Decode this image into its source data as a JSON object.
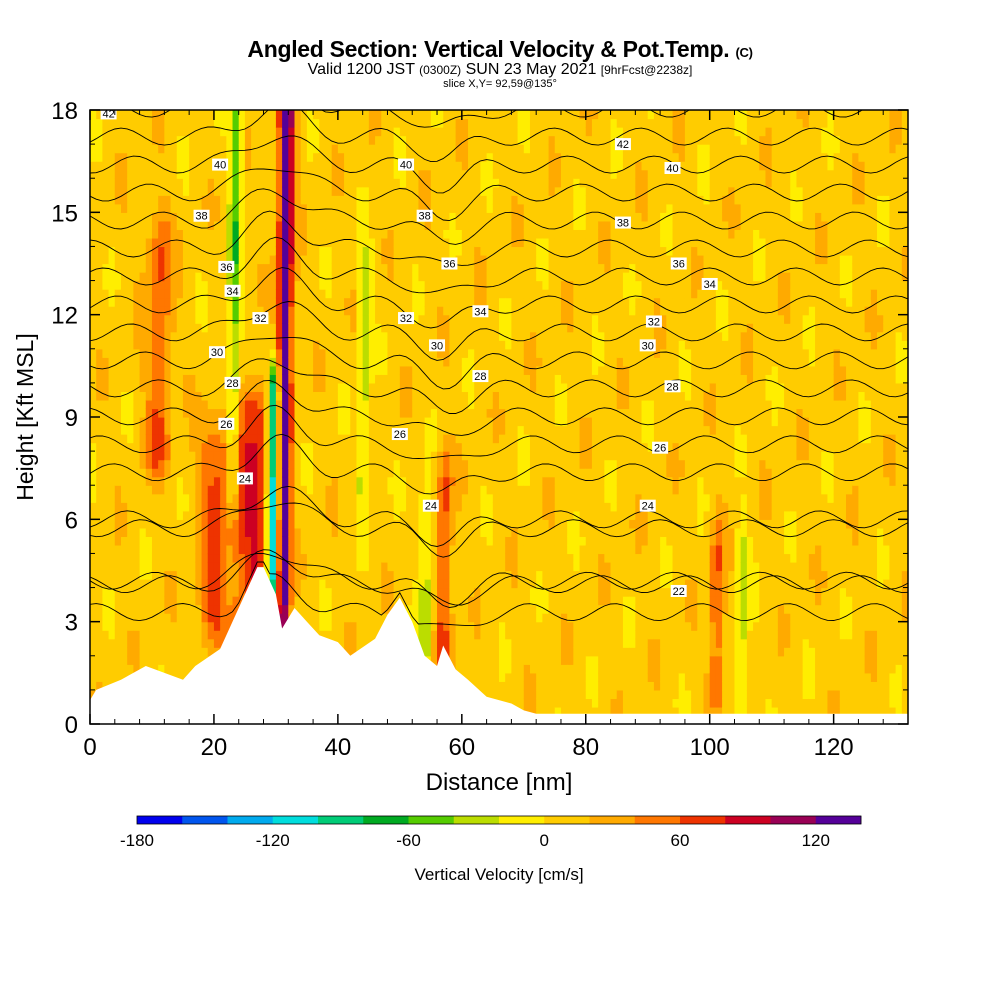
{
  "title": {
    "main": "Angled Section: Vertical Velocity & Pot.Temp.",
    "main_suffix": "(C)",
    "valid_prefix": "Valid 1200 JST",
    "valid_z": "(0300Z)",
    "valid_date": "SUN 23 May 2021",
    "valid_fcst": "[9hrFcst@2238z]",
    "slice": "slice X,Y= 92,59@135°"
  },
  "chart_data": {
    "type": "heatmap",
    "xlabel": "Distance [nm]",
    "ylabel": "Height [Kft MSL]",
    "xlim": [
      0,
      132
    ],
    "ylim": [
      0,
      18
    ],
    "x_ticks": [
      0,
      20,
      40,
      60,
      80,
      100,
      120
    ],
    "y_ticks": [
      0,
      3,
      6,
      9,
      12,
      15,
      18
    ],
    "colorbar": {
      "label": "Vertical Velocity [cm/s]",
      "min": -180,
      "max": 140,
      "step": 20,
      "tick_values": [
        -180,
        -120,
        -60,
        0,
        60,
        120
      ],
      "colors": [
        "#0000ee",
        "#0055ee",
        "#00aaee",
        "#00dddd",
        "#00cc77",
        "#00aa22",
        "#55cc00",
        "#bbdd00",
        "#ffee00",
        "#ffcc00",
        "#ffaa00",
        "#ff7700",
        "#ee3300",
        "#cc0022",
        "#990055",
        "#550099"
      ]
    },
    "field_background_value": 10,
    "velocity_features": [
      {
        "x": 31.0,
        "z_min": 3.0,
        "z_max": 18.0,
        "value": 130,
        "halfwidth": 1.2
      },
      {
        "x": 29.5,
        "z_min": 4.0,
        "z_max": 9.5,
        "value": -150,
        "halfwidth": 1.0
      },
      {
        "x": 26.0,
        "z_min": 3.0,
        "z_max": 9.0,
        "value": 70,
        "halfwidth": 3.0
      },
      {
        "x": 20.0,
        "z_min": 3.0,
        "z_max": 8.0,
        "value": 55,
        "halfwidth": 2.5
      },
      {
        "x": 23.0,
        "z_min": 7.0,
        "z_max": 18.0,
        "value": -60,
        "halfwidth": 1.0
      },
      {
        "x": 11.0,
        "z_min": 8.0,
        "z_max": 14.0,
        "value": 50,
        "halfwidth": 2.0
      },
      {
        "x": 57.0,
        "z_min": 2.0,
        "z_max": 7.0,
        "value": 55,
        "halfwidth": 1.3
      },
      {
        "x": 54.0,
        "z_min": 2.0,
        "z_max": 6.0,
        "value": -40,
        "halfwidth": 1.2
      },
      {
        "x": 101.0,
        "z_min": 1.0,
        "z_max": 5.0,
        "value": 50,
        "halfwidth": 1.2
      },
      {
        "x": 105.0,
        "z_min": 0.5,
        "z_max": 5.0,
        "value": -40,
        "halfwidth": 1.0
      },
      {
        "x": 44.0,
        "z_min": 7.0,
        "z_max": 13.0,
        "value": -40,
        "halfwidth": 1.0
      }
    ],
    "terrain": {
      "x": [
        0,
        1,
        5,
        9,
        15,
        17,
        21,
        27,
        28,
        30,
        31,
        33,
        35,
        37,
        40,
        42,
        46,
        48,
        50,
        52,
        54,
        56,
        57,
        59,
        61,
        64,
        68,
        70,
        72,
        74,
        132
      ],
      "z": [
        0.7,
        1.0,
        1.3,
        1.7,
        1.3,
        1.7,
        2.2,
        4.6,
        4.6,
        3.8,
        2.8,
        3.4,
        3.0,
        2.6,
        2.4,
        2.0,
        2.5,
        3.2,
        3.7,
        3.0,
        2.0,
        1.7,
        2.3,
        1.6,
        1.3,
        0.8,
        0.6,
        0.4,
        0.3,
        0.3,
        0.3
      ]
    },
    "theta_contour_levels": [
      22,
      24,
      26,
      28,
      30,
      32,
      34,
      36,
      38,
      40,
      42
    ],
    "theta_labels": [
      {
        "text": "42",
        "x": 3,
        "z": 17.9
      },
      {
        "text": "40",
        "x": 21,
        "z": 16.4
      },
      {
        "text": "38",
        "x": 18,
        "z": 14.9
      },
      {
        "text": "36",
        "x": 22,
        "z": 13.4
      },
      {
        "text": "34",
        "x": 23,
        "z": 12.7
      },
      {
        "text": "32",
        "x": 27.5,
        "z": 11.9
      },
      {
        "text": "30",
        "x": 20.5,
        "z": 10.9
      },
      {
        "text": "28",
        "x": 23,
        "z": 10.0
      },
      {
        "text": "26",
        "x": 22,
        "z": 8.8
      },
      {
        "text": "24",
        "x": 25,
        "z": 7.2
      },
      {
        "text": "40",
        "x": 51,
        "z": 16.4
      },
      {
        "text": "38",
        "x": 54,
        "z": 14.9
      },
      {
        "text": "36",
        "x": 58,
        "z": 13.5
      },
      {
        "text": "34",
        "x": 63,
        "z": 12.1
      },
      {
        "text": "32",
        "x": 51,
        "z": 11.9
      },
      {
        "text": "30",
        "x": 56,
        "z": 11.1
      },
      {
        "text": "28",
        "x": 63,
        "z": 10.2
      },
      {
        "text": "26",
        "x": 50,
        "z": 8.5
      },
      {
        "text": "24",
        "x": 55,
        "z": 6.4
      },
      {
        "text": "42",
        "x": 86,
        "z": 17.0
      },
      {
        "text": "40",
        "x": 94,
        "z": 16.3
      },
      {
        "text": "38",
        "x": 86,
        "z": 14.7
      },
      {
        "text": "36",
        "x": 95,
        "z": 13.5
      },
      {
        "text": "34",
        "x": 100,
        "z": 12.9
      },
      {
        "text": "32",
        "x": 91,
        "z": 11.8
      },
      {
        "text": "30",
        "x": 90,
        "z": 11.1
      },
      {
        "text": "28",
        "x": 94,
        "z": 9.9
      },
      {
        "text": "26",
        "x": 92,
        "z": 8.1
      },
      {
        "text": "24",
        "x": 90,
        "z": 6.4
      },
      {
        "text": "22",
        "x": 95,
        "z": 3.9
      }
    ]
  }
}
